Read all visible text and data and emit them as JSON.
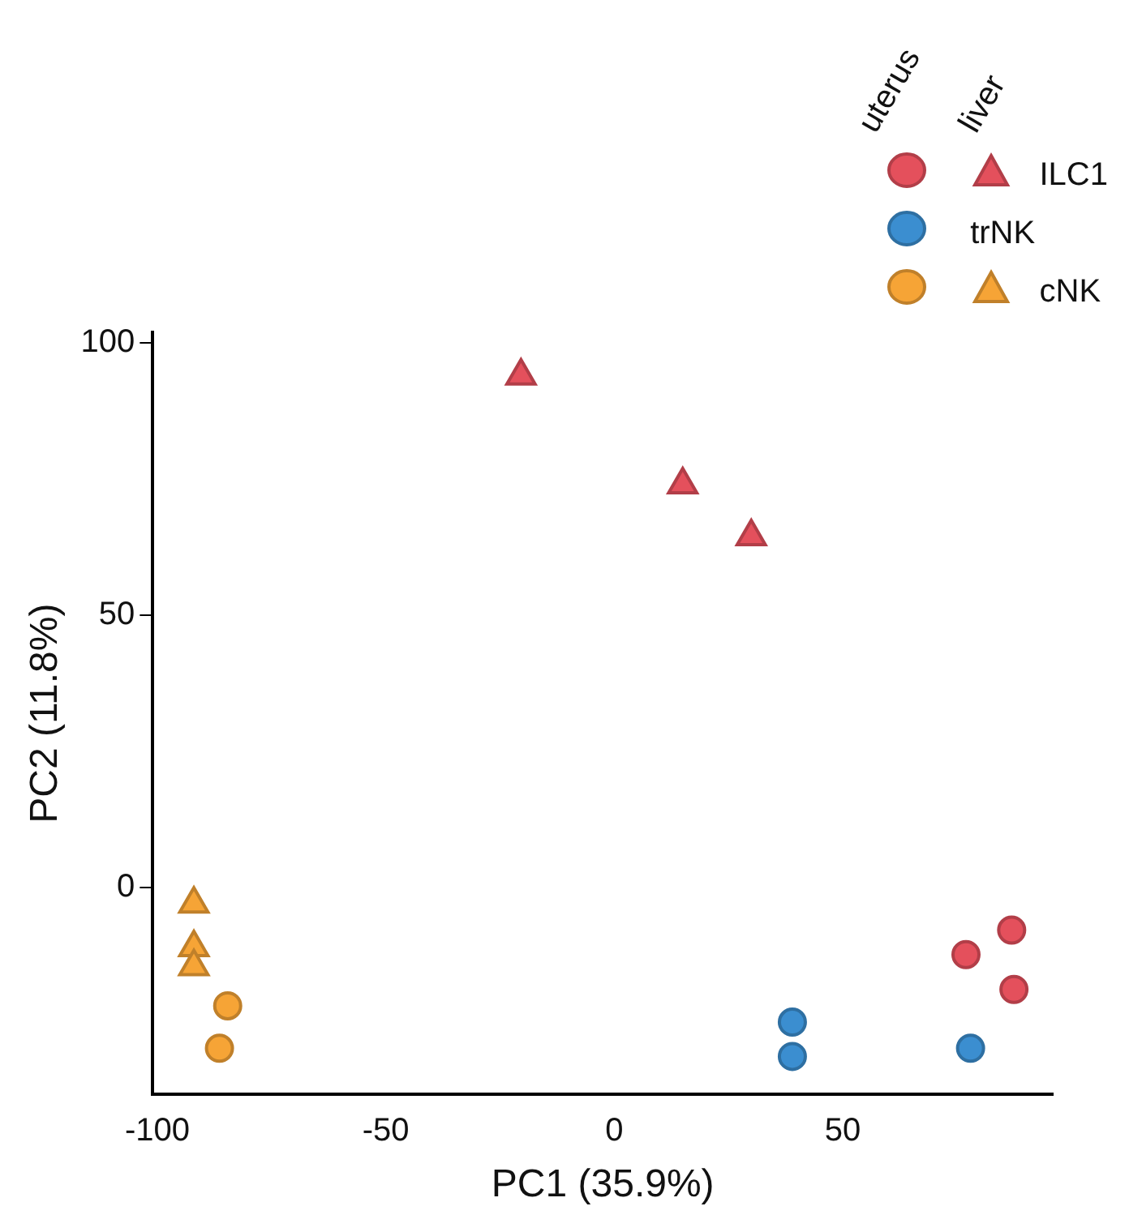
{
  "chart_data": {
    "type": "scatter",
    "xlabel": "PC1 (35.9%)",
    "ylabel": "PC2 (11.8%)",
    "annotations": [
      "uterus",
      "liver"
    ],
    "xlim": [
      -101,
      96
    ],
    "xticks": [
      -100,
      -50,
      0,
      50
    ],
    "ylim": [
      -38,
      102
    ],
    "yticks": [
      0,
      50,
      100
    ],
    "grid": false,
    "legend": "top right",
    "series": [
      {
        "color": "#e4505c",
        "marker": "circle",
        "x": [
          77,
          87,
          87.5
        ],
        "values": [
          -12.3,
          -7.8,
          -18.7
        ]
      },
      {
        "name": "trNK",
        "color": "#3b8ed0",
        "marker": "circle",
        "x": [
          39,
          39,
          78
        ],
        "values": [
          -24.7,
          -31,
          -29.5
        ]
      },
      {
        "color": "#f6a436",
        "marker": "circle",
        "x": [
          -84.6,
          -86.4
        ],
        "values": [
          -21.7,
          -29.5
        ]
      },
      {
        "name": "ILC1",
        "color": "#e4505c",
        "marker": "triangle",
        "x": [
          -20.4,
          15,
          30
        ],
        "values": [
          94,
          74,
          64.5
        ]
      },
      {
        "name": "cNK",
        "color": "#f6a436",
        "marker": "triangle",
        "x": [
          -92,
          -92,
          -92
        ],
        "values": [
          -3,
          -11,
          -14.5
        ]
      }
    ]
  }
}
